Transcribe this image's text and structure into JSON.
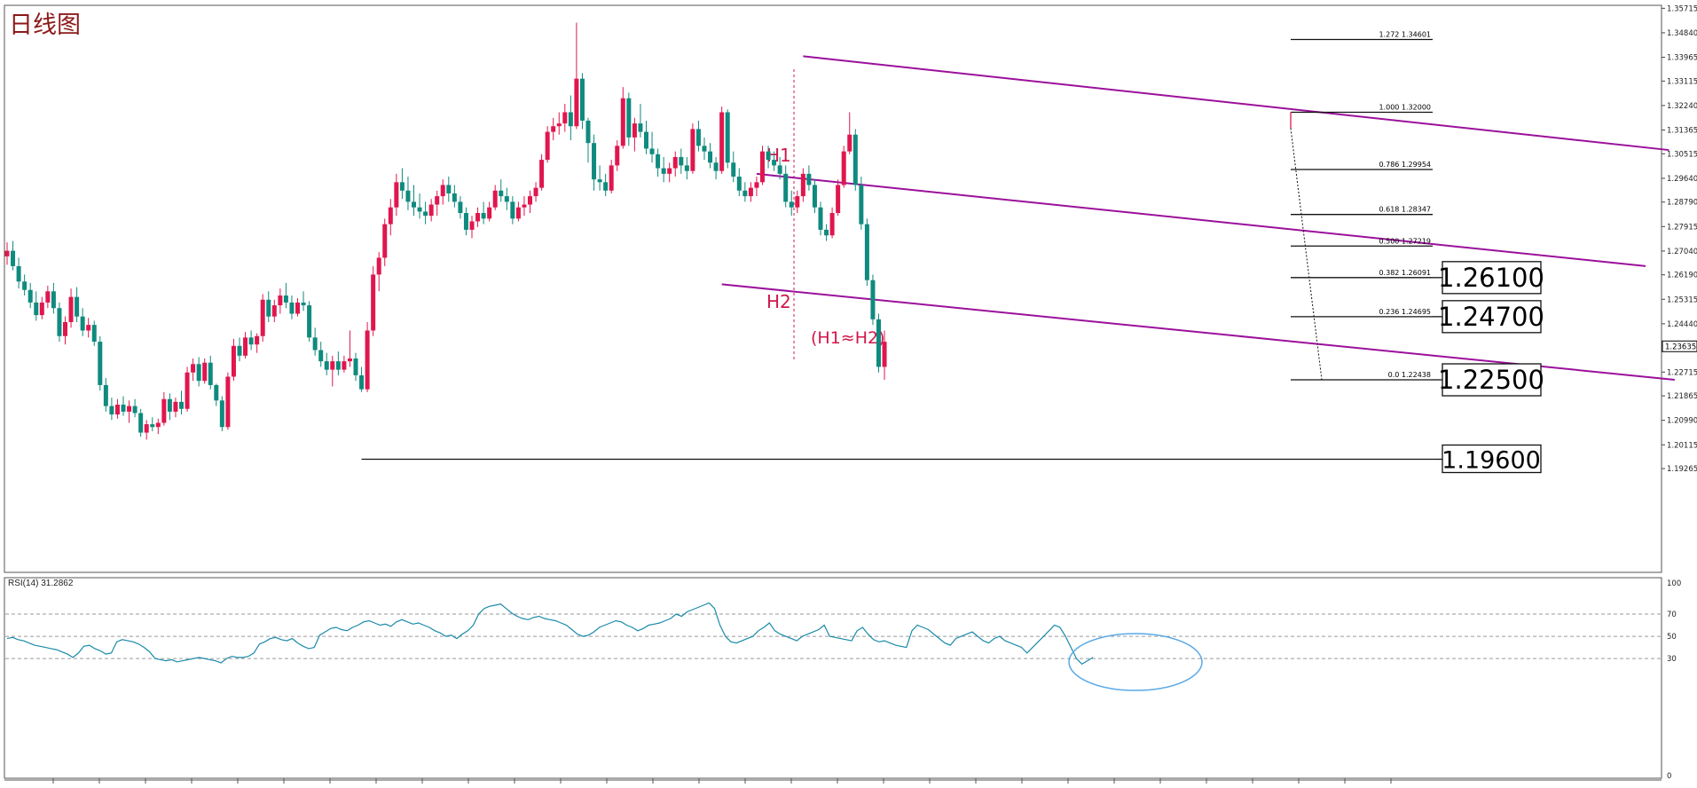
{
  "title": "日线图",
  "colors": {
    "bull": "#e0164e",
    "bear": "#0f8a7e",
    "channel": "#9b109b",
    "fib": "#111111",
    "rsi": "#1a8aa8",
    "annotation": "#d0174b",
    "circle": "#5aa9e6",
    "grid": "#9a9a9a"
  },
  "chart_data": [
    {
      "type": "candlestick",
      "title": "日线图",
      "ylim": [
        1.19,
        1.3625
      ],
      "y_ticks": [
        "1.35715",
        "1.34840",
        "1.33965",
        "1.33115",
        "1.32240",
        "1.31365",
        "1.30515",
        "1.29640",
        "1.28790",
        "1.27915",
        "1.27040",
        "1.26190",
        "1.25315",
        "1.24440",
        "1.23635",
        "1.22715",
        "1.21865",
        "1.20990",
        "1.20115",
        "1.19265"
      ],
      "current_price": "1.23635",
      "candles": [
        [
          1.2685,
          1.2735,
          1.2655,
          1.2705
        ],
        [
          1.2705,
          1.274,
          1.2635,
          1.265
        ],
        [
          1.265,
          1.268,
          1.257,
          1.2595
        ],
        [
          1.2595,
          1.262,
          1.2545,
          1.2565
        ],
        [
          1.2565,
          1.259,
          1.25,
          1.252
        ],
        [
          1.252,
          1.256,
          1.2455,
          1.2475
        ],
        [
          1.2475,
          1.254,
          1.246,
          1.252
        ],
        [
          1.252,
          1.258,
          1.25,
          1.256
        ],
        [
          1.256,
          1.259,
          1.248,
          1.25
        ],
        [
          1.25,
          1.252,
          1.238,
          1.24
        ],
        [
          1.24,
          1.247,
          1.237,
          1.245
        ],
        [
          1.245,
          1.257,
          1.243,
          1.254
        ],
        [
          1.254,
          1.2575,
          1.245,
          1.247
        ],
        [
          1.247,
          1.25,
          1.24,
          1.242
        ],
        [
          1.242,
          1.2465,
          1.2395,
          1.244
        ],
        [
          1.244,
          1.2455,
          1.2365,
          1.238
        ],
        [
          1.238,
          1.24,
          1.2205,
          1.2225
        ],
        [
          1.2225,
          1.225,
          1.213,
          1.215
        ],
        [
          1.215,
          1.218,
          1.21,
          1.212
        ],
        [
          1.212,
          1.2175,
          1.2105,
          1.2155
        ],
        [
          1.2155,
          1.2185,
          1.2115,
          1.213
        ],
        [
          1.213,
          1.217,
          1.209,
          1.215
        ],
        [
          1.215,
          1.2175,
          1.211,
          1.2125
        ],
        [
          1.2125,
          1.214,
          1.204,
          1.2055
        ],
        [
          1.2055,
          1.21,
          1.203,
          1.2085
        ],
        [
          1.2085,
          1.211,
          1.206,
          1.2075
        ],
        [
          1.2075,
          1.2105,
          1.205,
          1.209
        ],
        [
          1.209,
          1.22,
          1.208,
          1.2175
        ],
        [
          1.2175,
          1.2195,
          1.21,
          1.213
        ],
        [
          1.213,
          1.218,
          1.211,
          1.2165
        ],
        [
          1.2165,
          1.2205,
          1.212,
          1.214
        ],
        [
          1.214,
          1.229,
          1.213,
          1.227
        ],
        [
          1.227,
          1.232,
          1.224,
          1.23
        ],
        [
          1.23,
          1.2325,
          1.222,
          1.224
        ],
        [
          1.224,
          1.232,
          1.223,
          1.2305
        ],
        [
          1.2305,
          1.233,
          1.221,
          1.2225
        ],
        [
          1.2225,
          1.223,
          1.215,
          1.217
        ],
        [
          1.217,
          1.2185,
          1.206,
          1.2075
        ],
        [
          1.2075,
          1.227,
          1.2065,
          1.2255
        ],
        [
          1.2255,
          1.239,
          1.224,
          1.2365
        ],
        [
          1.2365,
          1.2395,
          1.231,
          1.233
        ],
        [
          1.233,
          1.2415,
          1.232,
          1.2395
        ],
        [
          1.2395,
          1.242,
          1.235,
          1.237
        ],
        [
          1.237,
          1.241,
          1.234,
          1.24
        ],
        [
          1.24,
          1.255,
          1.238,
          1.253
        ],
        [
          1.253,
          1.256,
          1.245,
          1.247
        ],
        [
          1.247,
          1.253,
          1.245,
          1.251
        ],
        [
          1.251,
          1.257,
          1.248,
          1.2545
        ],
        [
          1.2545,
          1.259,
          1.25,
          1.252
        ],
        [
          1.252,
          1.2545,
          1.246,
          1.248
        ],
        [
          1.248,
          1.2535,
          1.247,
          1.252
        ],
        [
          1.252,
          1.256,
          1.249,
          1.251
        ],
        [
          1.251,
          1.2525,
          1.238,
          1.2395
        ],
        [
          1.2395,
          1.243,
          1.233,
          1.235
        ],
        [
          1.235,
          1.238,
          1.229,
          1.231
        ],
        [
          1.231,
          1.234,
          1.226,
          1.228
        ],
        [
          1.228,
          1.233,
          1.222,
          1.231
        ],
        [
          1.231,
          1.2345,
          1.226,
          1.228
        ],
        [
          1.228,
          1.233,
          1.227,
          1.231
        ],
        [
          1.231,
          1.242,
          1.229,
          1.232
        ],
        [
          1.232,
          1.234,
          1.224,
          1.226
        ],
        [
          1.226,
          1.229,
          1.22,
          1.221
        ],
        [
          1.221,
          1.245,
          1.22,
          1.242
        ],
        [
          1.242,
          1.265,
          1.24,
          1.262
        ],
        [
          1.262,
          1.27,
          1.256,
          1.268
        ],
        [
          1.268,
          1.282,
          1.265,
          1.28
        ],
        [
          1.28,
          1.289,
          1.276,
          1.286
        ],
        [
          1.286,
          1.298,
          1.283,
          1.295
        ],
        [
          1.295,
          1.3,
          1.289,
          1.292
        ],
        [
          1.292,
          1.297,
          1.285,
          1.288
        ],
        [
          1.288,
          1.294,
          1.283,
          1.286
        ],
        [
          1.286,
          1.291,
          1.282,
          1.2845
        ],
        [
          1.2845,
          1.288,
          1.28,
          1.283
        ],
        [
          1.283,
          1.289,
          1.281,
          1.287
        ],
        [
          1.287,
          1.292,
          1.283,
          1.29
        ],
        [
          1.29,
          1.296,
          1.287,
          1.294
        ],
        [
          1.294,
          1.297,
          1.288,
          1.291
        ],
        [
          1.291,
          1.294,
          1.286,
          1.288
        ],
        [
          1.288,
          1.29,
          1.282,
          1.284
        ],
        [
          1.284,
          1.286,
          1.276,
          1.278
        ],
        [
          1.278,
          1.283,
          1.275,
          1.281
        ],
        [
          1.281,
          1.286,
          1.279,
          1.284
        ],
        [
          1.284,
          1.288,
          1.28,
          1.282
        ],
        [
          1.282,
          1.288,
          1.281,
          1.286
        ],
        [
          1.286,
          1.294,
          1.285,
          1.292
        ],
        [
          1.292,
          1.296,
          1.288,
          1.29
        ],
        [
          1.29,
          1.293,
          1.285,
          1.288
        ],
        [
          1.288,
          1.29,
          1.28,
          1.282
        ],
        [
          1.282,
          1.288,
          1.281,
          1.286
        ],
        [
          1.286,
          1.29,
          1.283,
          1.287
        ],
        [
          1.287,
          1.292,
          1.284,
          1.29
        ],
        [
          1.29,
          1.295,
          1.288,
          1.293
        ],
        [
          1.293,
          1.305,
          1.292,
          1.303
        ],
        [
          1.303,
          1.315,
          1.302,
          1.313
        ],
        [
          1.313,
          1.318,
          1.31,
          1.315
        ],
        [
          1.315,
          1.32,
          1.312,
          1.316
        ],
        [
          1.316,
          1.323,
          1.313,
          1.32
        ],
        [
          1.32,
          1.326,
          1.31,
          1.315
        ],
        [
          1.315,
          1.352,
          1.314,
          1.332
        ],
        [
          1.332,
          1.334,
          1.314,
          1.317
        ],
        [
          1.317,
          1.318,
          1.302,
          1.309
        ],
        [
          1.309,
          1.312,
          1.292,
          1.296
        ],
        [
          1.296,
          1.301,
          1.292,
          1.295
        ],
        [
          1.295,
          1.298,
          1.29,
          1.292
        ],
        [
          1.292,
          1.303,
          1.291,
          1.301
        ],
        [
          1.301,
          1.31,
          1.299,
          1.308
        ],
        [
          1.308,
          1.329,
          1.307,
          1.325
        ],
        [
          1.325,
          1.327,
          1.308,
          1.311
        ],
        [
          1.311,
          1.318,
          1.306,
          1.316
        ],
        [
          1.316,
          1.323,
          1.311,
          1.313
        ],
        [
          1.313,
          1.317,
          1.305,
          1.307
        ],
        [
          1.307,
          1.313,
          1.302,
          1.305
        ],
        [
          1.305,
          1.307,
          1.297,
          1.3
        ],
        [
          1.3,
          1.304,
          1.295,
          1.298
        ],
        [
          1.298,
          1.302,
          1.295,
          1.3
        ],
        [
          1.3,
          1.306,
          1.297,
          1.304
        ],
        [
          1.304,
          1.307,
          1.298,
          1.301
        ],
        [
          1.301,
          1.304,
          1.296,
          1.299
        ],
        [
          1.299,
          1.316,
          1.298,
          1.314
        ],
        [
          1.314,
          1.317,
          1.306,
          1.308
        ],
        [
          1.308,
          1.311,
          1.303,
          1.306
        ],
        [
          1.306,
          1.309,
          1.3,
          1.302
        ],
        [
          1.302,
          1.304,
          1.296,
          1.299
        ],
        [
          1.299,
          1.322,
          1.298,
          1.32
        ],
        [
          1.32,
          1.321,
          1.3,
          1.302
        ],
        [
          1.302,
          1.306,
          1.295,
          1.297
        ],
        [
          1.297,
          1.3,
          1.29,
          1.292
        ],
        [
          1.292,
          1.295,
          1.288,
          1.29
        ],
        [
          1.29,
          1.295,
          1.288,
          1.293
        ],
        [
          1.293,
          1.297,
          1.29,
          1.295
        ],
        [
          1.295,
          1.308,
          1.294,
          1.306
        ],
        [
          1.306,
          1.308,
          1.3,
          1.303
        ],
        [
          1.303,
          1.306,
          1.299,
          1.301
        ],
        [
          1.301,
          1.304,
          1.296,
          1.298
        ],
        [
          1.298,
          1.301,
          1.286,
          1.288
        ],
        [
          1.288,
          1.292,
          1.283,
          1.286
        ],
        [
          1.286,
          1.292,
          1.284,
          1.29
        ],
        [
          1.29,
          1.3,
          1.288,
          1.298
        ],
        [
          1.298,
          1.301,
          1.292,
          1.294
        ],
        [
          1.294,
          1.296,
          1.284,
          1.286
        ],
        [
          1.286,
          1.288,
          1.276,
          1.278
        ],
        [
          1.278,
          1.28,
          1.274,
          1.276
        ],
        [
          1.276,
          1.286,
          1.275,
          1.284
        ],
        [
          1.284,
          1.296,
          1.283,
          1.294
        ],
        [
          1.294,
          1.308,
          1.293,
          1.306
        ],
        [
          1.306,
          1.32,
          1.305,
          1.312
        ],
        [
          1.312,
          1.314,
          1.292,
          1.294
        ],
        [
          1.294,
          1.297,
          1.278,
          1.28
        ],
        [
          1.28,
          1.282,
          1.258,
          1.26
        ],
        [
          1.26,
          1.262,
          1.244,
          1.246
        ],
        [
          1.246,
          1.248,
          1.227,
          1.229
        ],
        [
          1.229,
          1.242,
          1.2244,
          1.238
        ]
      ],
      "channel_lines": [
        {
          "x1": 137,
          "y1": 1.34,
          "x2": 286,
          "y2": 1.3065
        },
        {
          "x1": 129,
          "y1": 1.298,
          "x2": 282,
          "y2": 1.265
        },
        {
          "x1": 123,
          "y1": 1.2585,
          "x2": 287,
          "y2": 1.2244
        }
      ],
      "fib_levels": [
        {
          "ratio": "1.272",
          "value": 1.34601,
          "label": "1.34601",
          "box": ""
        },
        {
          "ratio": "1.000",
          "value": 1.32,
          "label": "1.32000",
          "box": ""
        },
        {
          "ratio": "0.786",
          "value": 1.29954,
          "label": "1.29954",
          "box": ""
        },
        {
          "ratio": "0.618",
          "value": 1.28347,
          "label": "1.28347",
          "box": ""
        },
        {
          "ratio": "0.500",
          "value": 1.27219,
          "label": "1.27219",
          "box": ""
        },
        {
          "ratio": "0.382",
          "value": 1.26091,
          "label": "1.26091",
          "box": "1.26100"
        },
        {
          "ratio": "0.236",
          "value": 1.24695,
          "label": "1.24695",
          "box": "1.24700"
        },
        {
          "ratio": "0.0",
          "value": 1.22438,
          "label": "1.22438",
          "box": "1.22500"
        }
      ],
      "support_line": {
        "value": 1.196,
        "from_index": 61,
        "box": "1.19600"
      },
      "annotations": {
        "h1": "H1",
        "h2": "H2",
        "equality": "(H1≈H2)"
      }
    },
    {
      "type": "line",
      "title": "RSI(14) 31.2862",
      "ylim": [
        0,
        100
      ],
      "y_ticks": [
        "100",
        "70",
        "50",
        "30",
        "0"
      ],
      "levels": [
        70,
        50,
        30
      ],
      "values": [
        48,
        49,
        47,
        46,
        44,
        42,
        41,
        40,
        39,
        38,
        36,
        34,
        31,
        35,
        41,
        42,
        39,
        37,
        34,
        35,
        45,
        47,
        46,
        45,
        43,
        40,
        36,
        30,
        29,
        28,
        29,
        27,
        28,
        29,
        30,
        31,
        30,
        29,
        28,
        26,
        30,
        32,
        31,
        31,
        32,
        35,
        43,
        45,
        48,
        49,
        47,
        46,
        48,
        44,
        41,
        39,
        40,
        51,
        54,
        57,
        58,
        56,
        55,
        58,
        60,
        63,
        64,
        62,
        60,
        61,
        59,
        63,
        65,
        63,
        61,
        62,
        60,
        58,
        55,
        53,
        50,
        51,
        48,
        52,
        55,
        60,
        70,
        75,
        77,
        78,
        79,
        75,
        71,
        68,
        66,
        65,
        67,
        68,
        66,
        65,
        64,
        62,
        60,
        56,
        52,
        50,
        51,
        54,
        58,
        60,
        62,
        64,
        63,
        60,
        58,
        55,
        57,
        60,
        61,
        62,
        64,
        66,
        70,
        68,
        72,
        74,
        76,
        78,
        80,
        75,
        60,
        50,
        45,
        44,
        46,
        48,
        50,
        55,
        58,
        62,
        55,
        52,
        50,
        48,
        46,
        50,
        52,
        54,
        56,
        60,
        50,
        49,
        48,
        47,
        46,
        55,
        58,
        52,
        47,
        45,
        46,
        44,
        42,
        41,
        40,
        55,
        60,
        58,
        56,
        52,
        48,
        44,
        42,
        48,
        50,
        52,
        54,
        50,
        46,
        44,
        48,
        50,
        46,
        44,
        42,
        40,
        35,
        40,
        45,
        50,
        55,
        60,
        58,
        50,
        40,
        30,
        25,
        28,
        31
      ],
      "ellipse_center": [
        1280,
        746
      ],
      "ellipse_radii": [
        75,
        32
      ]
    }
  ]
}
